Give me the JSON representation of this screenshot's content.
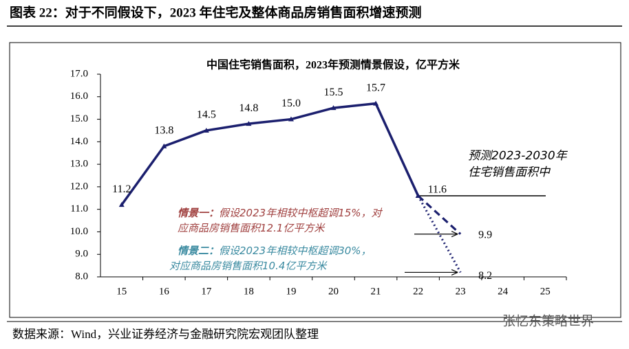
{
  "header": {
    "title": "图表 22：对于不同假设下，2023 年住宅及整体商品房销售面积增速预测"
  },
  "chart_data": {
    "type": "line",
    "title": "中国住宅销售面积，2023年预测情景假设，亿平方米",
    "categories": [
      "15",
      "16",
      "17",
      "18",
      "19",
      "20",
      "21",
      "22",
      "23",
      "24",
      "25"
    ],
    "series": [
      {
        "color": "#1b1f6e",
        "style": "solid",
        "marker": "triangle",
        "values": [
          11.2,
          13.8,
          14.5,
          14.8,
          15.0,
          15.5,
          15.7,
          11.6,
          null,
          null,
          null
        ],
        "value_labels": [
          "11.2",
          "13.8",
          "14.5",
          "14.8",
          "15.0",
          "15.5",
          "15.7",
          "11.6",
          null,
          null,
          null
        ]
      },
      {
        "color": "#1b1f6e",
        "style": "dashed",
        "values": [
          null,
          null,
          null,
          null,
          null,
          null,
          null,
          11.6,
          9.9,
          null,
          null
        ],
        "value_labels": [
          null,
          null,
          null,
          null,
          null,
          null,
          null,
          null,
          "9.9",
          null,
          null
        ]
      },
      {
        "color": "#1b1f6e",
        "style": "dotted",
        "values": [
          null,
          null,
          null,
          null,
          null,
          null,
          null,
          11.6,
          8.2,
          null,
          null
        ],
        "value_labels": [
          null,
          null,
          null,
          null,
          null,
          null,
          null,
          null,
          "8.2",
          null,
          null
        ]
      }
    ],
    "ylim": [
      8.0,
      17.0
    ],
    "yticks": [
      {
        "value": 8.0,
        "label": "8.0"
      },
      {
        "value": 9.0,
        "label": "9.0"
      },
      {
        "value": 10.0,
        "label": "10.0"
      },
      {
        "value": 11.0,
        "label": "11.0"
      },
      {
        "value": 12.0,
        "label": "12.0"
      },
      {
        "value": 13.0,
        "label": "13.0"
      },
      {
        "value": 14.0,
        "label": "14.0"
      },
      {
        "value": 15.0,
        "label": "15.0"
      },
      {
        "value": 16.0,
        "label": "16.0"
      },
      {
        "value": 17.0,
        "label": "17.0"
      }
    ],
    "reference_line": {
      "value": 11.6,
      "lines": [
        "预测2023-2030年",
        "住宅销售面积中"
      ]
    },
    "annotations": [
      {
        "prefix": "情景一：",
        "lines": [
          "假设2023年相较中枢超调15%，对",
          "应商品房销售面积12.1亿平方米"
        ],
        "color": "#a0403f"
      },
      {
        "prefix": "情景二：",
        "lines": [
          "假设2023年相较中枢超调30%，",
          "对应商品房销售面积10.4亿平方米"
        ],
        "color": "#3a8aa0"
      }
    ]
  },
  "footer": {
    "source": "数据来源：Wind，兴业证券经济与金融研究院宏观团队整理",
    "watermark": "张忆东策略世界"
  }
}
